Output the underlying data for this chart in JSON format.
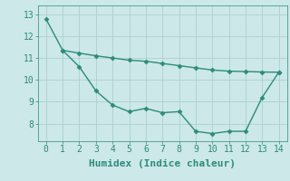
{
  "line1_x": [
    0,
    1,
    2,
    3,
    4,
    5,
    6,
    7,
    8,
    9,
    10,
    11,
    12,
    13,
    14
  ],
  "line1_y": [
    12.78,
    11.35,
    11.22,
    11.1,
    11.0,
    10.9,
    10.85,
    10.75,
    10.65,
    10.55,
    10.45,
    10.4,
    10.38,
    10.36,
    10.35
  ],
  "line2_x": [
    1,
    2,
    3,
    4,
    5,
    6,
    7,
    8,
    9,
    10,
    11,
    12,
    13,
    14
  ],
  "line2_y": [
    11.35,
    10.6,
    9.5,
    8.85,
    8.55,
    8.7,
    8.5,
    8.55,
    7.65,
    7.55,
    7.65,
    7.65,
    9.2,
    10.35
  ],
  "line_color": "#2d8b7a",
  "bg_color": "#cce8e8",
  "grid_color": "#aed0d0",
  "xlabel": "Humidex (Indice chaleur)",
  "xlim": [
    -0.5,
    14.5
  ],
  "ylim": [
    7.2,
    13.4
  ],
  "yticks": [
    8,
    9,
    10,
    11,
    12,
    13
  ],
  "xticks": [
    0,
    1,
    2,
    3,
    4,
    5,
    6,
    7,
    8,
    9,
    10,
    11,
    12,
    13,
    14
  ],
  "marker": "D",
  "markersize": 2.5,
  "linewidth": 1.0,
  "xlabel_fontsize": 8,
  "tick_fontsize": 7
}
